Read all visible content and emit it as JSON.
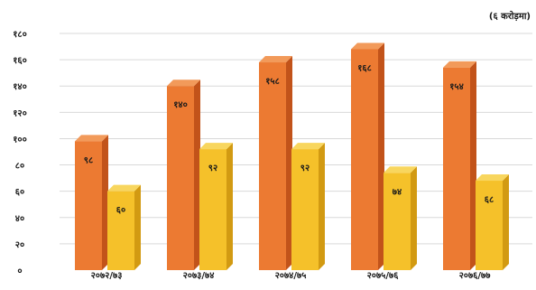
{
  "chart_data": {
    "type": "bar",
    "unit_label": "(६ करोड़मा)",
    "categories": [
      "२०७२/७३",
      "२०७३/७४",
      "२०७४/७५",
      "२०७५/७६",
      "२०७६/७७"
    ],
    "series": [
      {
        "values": [
          98,
          140,
          158,
          168,
          154
        ],
        "data_labels": [
          "९८",
          "१४०",
          "१५८",
          "१६८",
          "१५४"
        ]
      },
      {
        "values": [
          60,
          92,
          92,
          74,
          68
        ],
        "data_labels": [
          "६०",
          "९२",
          "९२",
          "७४",
          "६८"
        ]
      }
    ],
    "ylim": [
      0,
      180
    ],
    "yticks": [
      0,
      20,
      40,
      60,
      80,
      100,
      120,
      140,
      160,
      180
    ],
    "ytick_labels": [
      "०",
      "२०",
      "४०",
      "६०",
      "८०",
      "१००",
      "१२०",
      "१४०",
      "१६०",
      "१८०"
    ],
    "grid": true,
    "colors": {
      "series1_front": "#ec7a32",
      "series1_side": "#c2531a",
      "series1_top": "#f29a5a",
      "series2_front": "#f5c12a",
      "series2_side": "#d29a12",
      "series2_top": "#f8d65e",
      "grid": "#d9d9d9"
    }
  }
}
